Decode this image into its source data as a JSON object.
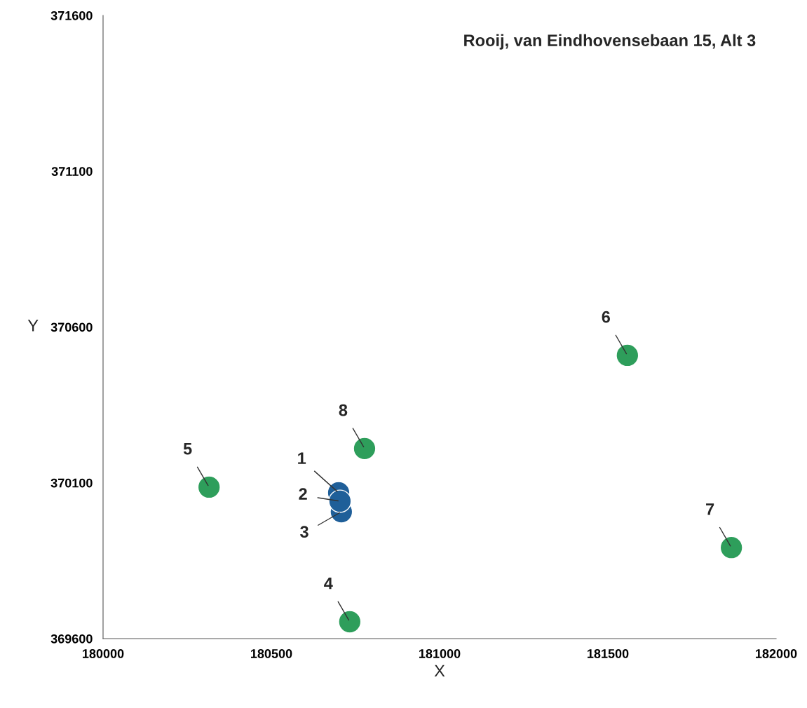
{
  "chart_data": {
    "type": "scatter",
    "title": "Rooij, van Eindhovensebaan 15, Alt 3",
    "xlabel": "X",
    "ylabel": "Y",
    "series": [
      {
        "color": "#2e9e5b",
        "x": [
          180733,
          180315,
          181558,
          181867,
          180777
        ],
        "values": [
          369654,
          370086,
          370509,
          369892,
          370210
        ]
      },
      {
        "color": "#1f5f99",
        "x": [
          180700,
          180708,
          180704
        ],
        "values": [
          370068,
          370007,
          370041
        ]
      }
    ],
    "annotations": [
      {
        "text": "4",
        "x": 180733,
        "y": 369654
      },
      {
        "text": "5",
        "x": 180315,
        "y": 370086
      },
      {
        "text": "6",
        "x": 181558,
        "y": 370509
      },
      {
        "text": "7",
        "x": 181867,
        "y": 369892
      },
      {
        "text": "8",
        "x": 180777,
        "y": 370210
      },
      {
        "text": "1",
        "x": 180700,
        "y": 370068
      },
      {
        "text": "2",
        "x": 180704,
        "y": 370041
      },
      {
        "text": "3",
        "x": 180708,
        "y": 370007
      }
    ],
    "xlim": [
      180000,
      182000
    ],
    "xticks": [
      180000,
      180500,
      181000,
      181500,
      182000
    ],
    "ylim": [
      369600,
      371600
    ],
    "yticks": [
      369600,
      370100,
      370600,
      371100,
      371600
    ],
    "grid": false,
    "marker": "circle",
    "legend": false
  }
}
